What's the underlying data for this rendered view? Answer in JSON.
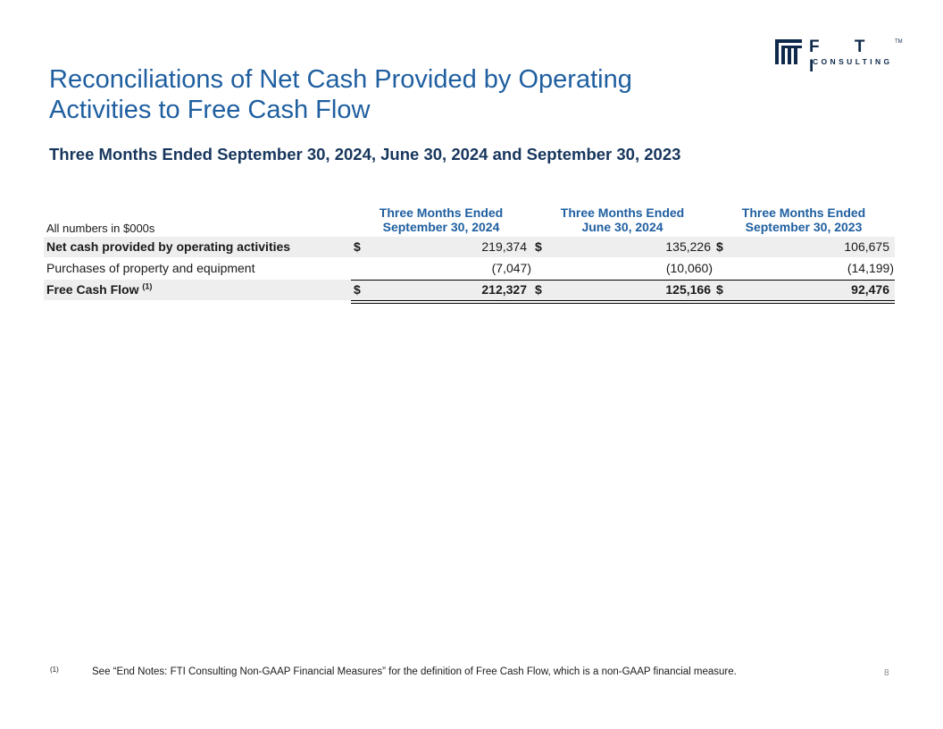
{
  "logo": {
    "text": "F T I",
    "sub": "CONSULTING",
    "tm": "TM"
  },
  "title": {
    "line1": "Reconciliations of Net Cash Provided by Operating",
    "line2": "Activities to Free Cash Flow"
  },
  "subtitle": "Three Months Ended September 30, 2024, June 30, 2024 and September 30, 2023",
  "table": {
    "units_note": "All numbers in $000s",
    "columns": [
      {
        "line1": "Three Months Ended",
        "line2": "September 30, 2024"
      },
      {
        "line1": "Three Months Ended",
        "line2": "June 30, 2024"
      },
      {
        "line1": "Three Months Ended",
        "line2": "September 30, 2023"
      }
    ],
    "rows": [
      {
        "label": "Net cash provided by operating activities",
        "currency": "$",
        "values": [
          "219,374",
          "135,226",
          "106,675"
        ]
      },
      {
        "label": "Purchases of property and equipment",
        "values": [
          "(7,047)",
          "(10,060)",
          "(14,199)"
        ]
      },
      {
        "label": "Free Cash Flow",
        "footnote_ref": "(1)",
        "currency": "$",
        "values": [
          "212,327",
          "125,166",
          "92,476"
        ]
      }
    ]
  },
  "footnote": {
    "marker": "(1)",
    "text": "See “End Notes: FTI Consulting Non-GAAP Financial Measures” for the definition of Free Cash Flow, which is a non-GAAP financial measure."
  },
  "page_number": "8",
  "colors": {
    "title": "#1f5fa0",
    "subtitle": "#17365d",
    "shade": "#eeeeee"
  }
}
